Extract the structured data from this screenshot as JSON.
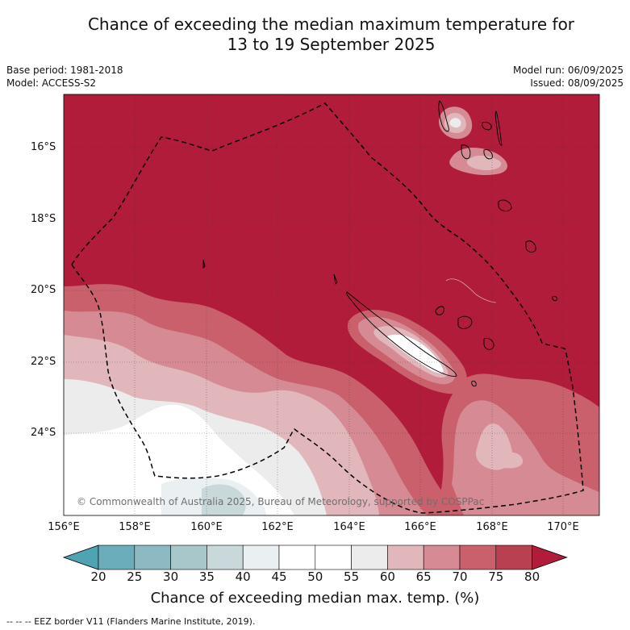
{
  "title_line1": "Chance of exceeding the median maximum temperature for",
  "title_line2": "13 to 19 September 2025",
  "base_period": "Base period: 1981-2018",
  "model": "Model: ACCESS-S2",
  "model_run": "Model run: 06/09/2025",
  "issued": "Issued: 08/09/2025",
  "lat_labels": [
    "16°S",
    "18°S",
    "20°S",
    "22°S",
    "24°S"
  ],
  "lon_labels": [
    "156°E",
    "158°E",
    "160°E",
    "162°E",
    "164°E",
    "166°E",
    "168°E",
    "170°E"
  ],
  "copyright": "© Commonwealth of Australia 2025, Bureau of Meteorology, supported by COSPPac",
  "colorbar": {
    "ticks": [
      "20",
      "25",
      "30",
      "35",
      "40",
      "45",
      "50",
      "55",
      "60",
      "65",
      "70",
      "75",
      "80"
    ],
    "colors": [
      "#4fa3b3",
      "#6badbb",
      "#8cb9c2",
      "#a8c7cb",
      "#c9d8da",
      "#eaf0f1",
      "#ffffff",
      "#ffffff",
      "#ececec",
      "#e1b7bb",
      "#d68a93",
      "#c9606c",
      "#b94050",
      "#b01c3a"
    ],
    "label": "Chance of exceeding median max. temp. (%)"
  },
  "eez_legend": "--  --  -- EEZ border V11 (Flanders Marine Institute, 2019).",
  "dominant_color": "#b01c3a"
}
